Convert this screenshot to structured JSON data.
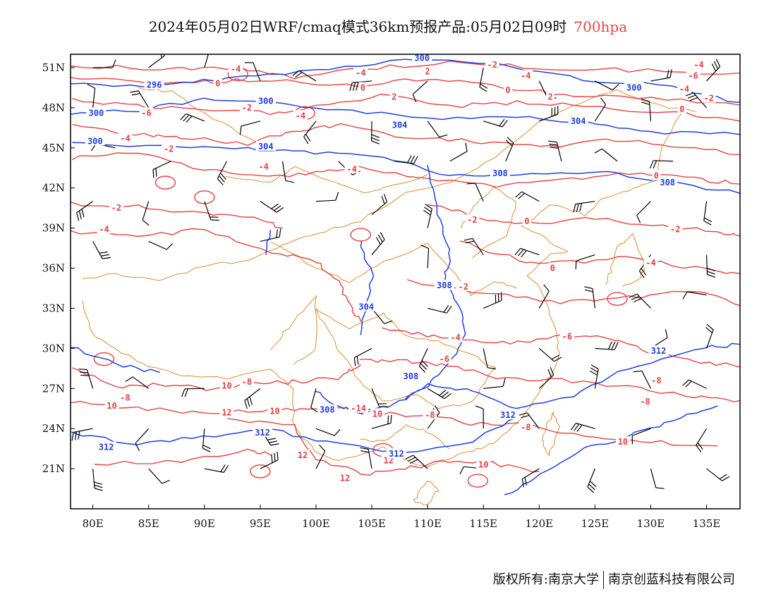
{
  "title": {
    "main": "2024年05月02日WRF/cmaq模式36km预报产品:05月02日09时",
    "level": "700hpa"
  },
  "map": {
    "lon_range": [
      78,
      138
    ],
    "lat_range": [
      18,
      52
    ],
    "x_ticks": [
      "80E",
      "85E",
      "90E",
      "95E",
      "100E",
      "105E",
      "110E",
      "115E",
      "120E",
      "125E",
      "130E",
      "135E"
    ],
    "x_tick_values": [
      80,
      85,
      90,
      95,
      100,
      105,
      110,
      115,
      120,
      125,
      130,
      135
    ],
    "y_ticks": [
      "51N",
      "48N",
      "45N",
      "42N",
      "39N",
      "36N",
      "33N",
      "30N",
      "27N",
      "24N",
      "21N"
    ],
    "y_tick_values": [
      51,
      48,
      45,
      42,
      39,
      36,
      33,
      30,
      27,
      24,
      21
    ],
    "colors": {
      "geopotential": "#2040e0",
      "temperature": "#e84040",
      "boundary": "#e08a30",
      "wind": "#000000"
    },
    "geopotential_labels": [
      {
        "text": "300",
        "lon": 95.5,
        "lat": 48.5
      },
      {
        "text": "300",
        "lon": 128.5,
        "lat": 49.5
      },
      {
        "text": "300",
        "lon": 109.5,
        "lat": 51.7
      },
      {
        "text": "296",
        "lon": 85.5,
        "lat": 49.7
      },
      {
        "text": "300",
        "lon": 80.3,
        "lat": 47.6
      },
      {
        "text": "304",
        "lon": 95.5,
        "lat": 45.1
      },
      {
        "text": "304",
        "lon": 107.5,
        "lat": 46.7
      },
      {
        "text": "304",
        "lon": 123.5,
        "lat": 47.0
      },
      {
        "text": "308",
        "lon": 116.5,
        "lat": 43.1
      },
      {
        "text": "308",
        "lon": 131.5,
        "lat": 42.4
      },
      {
        "text": "308",
        "lon": 111.5,
        "lat": 34.7
      },
      {
        "text": "304",
        "lon": 104.5,
        "lat": 33.1
      },
      {
        "text": "308",
        "lon": 108.5,
        "lat": 27.9
      },
      {
        "text": "308",
        "lon": 101.0,
        "lat": 25.4
      },
      {
        "text": "312",
        "lon": 130.7,
        "lat": 29.8
      },
      {
        "text": "312",
        "lon": 117.2,
        "lat": 25.0
      },
      {
        "text": "312",
        "lon": 95.2,
        "lat": 23.7
      },
      {
        "text": "312",
        "lon": 107.2,
        "lat": 22.1
      },
      {
        "text": "312",
        "lon": 81.2,
        "lat": 22.6
      },
      {
        "text": "300",
        "lon": 80.2,
        "lat": 45.5
      }
    ],
    "temperature_labels": [
      {
        "text": "-4",
        "lon": 92.8,
        "lat": 50.9
      },
      {
        "text": "0",
        "lon": 91.2,
        "lat": 49.8
      },
      {
        "text": "-2",
        "lon": 93.8,
        "lat": 48.0
      },
      {
        "text": "-6",
        "lon": 84.8,
        "lat": 47.6
      },
      {
        "text": "-4",
        "lon": 82.9,
        "lat": 45.7
      },
      {
        "text": "-2",
        "lon": 86.8,
        "lat": 44.9
      },
      {
        "text": "-4",
        "lon": 95.3,
        "lat": 43.6
      },
      {
        "text": "-4",
        "lon": 98.6,
        "lat": 47.4
      },
      {
        "text": "-4",
        "lon": 104.0,
        "lat": 50.6
      },
      {
        "text": "0",
        "lon": 104.2,
        "lat": 49.5
      },
      {
        "text": "2",
        "lon": 110.0,
        "lat": 50.7
      },
      {
        "text": "2",
        "lon": 107.0,
        "lat": 48.8
      },
      {
        "text": "-4",
        "lon": 103.2,
        "lat": 43.4
      },
      {
        "text": "-2",
        "lon": 82.1,
        "lat": 40.5
      },
      {
        "text": "-4",
        "lon": 81.0,
        "lat": 38.9
      },
      {
        "text": "-2",
        "lon": 114.0,
        "lat": 39.6
      },
      {
        "text": "0",
        "lon": 118.9,
        "lat": 39.5
      },
      {
        "text": "0",
        "lon": 130.5,
        "lat": 42.9
      },
      {
        "text": "0",
        "lon": 121.2,
        "lat": 36.0
      },
      {
        "text": "-2",
        "lon": 115.8,
        "lat": 51.2
      },
      {
        "text": "0",
        "lon": 117.2,
        "lat": 49.3
      },
      {
        "text": "2",
        "lon": 121.0,
        "lat": 48.8
      },
      {
        "text": "-4",
        "lon": 118.8,
        "lat": 50.4
      },
      {
        "text": "-4",
        "lon": 134.3,
        "lat": 51.2
      },
      {
        "text": "-6",
        "lon": 133.8,
        "lat": 50.4
      },
      {
        "text": "-4",
        "lon": 133.0,
        "lat": 49.4
      },
      {
        "text": "-2",
        "lon": 135.2,
        "lat": 48.7
      },
      {
        "text": "0",
        "lon": 132.8,
        "lat": 47.9
      },
      {
        "text": "-2",
        "lon": 132.2,
        "lat": 38.9
      },
      {
        "text": "-4",
        "lon": 130.0,
        "lat": 36.4
      },
      {
        "text": "-2",
        "lon": 113.2,
        "lat": 34.6
      },
      {
        "text": "-4",
        "lon": 112.5,
        "lat": 30.8
      },
      {
        "text": "-6",
        "lon": 111.5,
        "lat": 29.2
      },
      {
        "text": "-6",
        "lon": 122.5,
        "lat": 30.9
      },
      {
        "text": "-8",
        "lon": 130.5,
        "lat": 27.6
      },
      {
        "text": "-8",
        "lon": 129.5,
        "lat": 26.0
      },
      {
        "text": "-8",
        "lon": 118.8,
        "lat": 24.1
      },
      {
        "text": "10",
        "lon": 127.5,
        "lat": 23.0
      },
      {
        "text": "10",
        "lon": 115.0,
        "lat": 21.3
      },
      {
        "text": "12",
        "lon": 102.6,
        "lat": 20.3
      },
      {
        "text": "12",
        "lon": 106.5,
        "lat": 21.6
      },
      {
        "text": "12",
        "lon": 98.8,
        "lat": 22.0
      },
      {
        "text": "12",
        "lon": 92.0,
        "lat": 25.2
      },
      {
        "text": "10",
        "lon": 96.3,
        "lat": 25.3
      },
      {
        "text": "-14",
        "lon": 103.8,
        "lat": 25.5
      },
      {
        "text": "10",
        "lon": 105.5,
        "lat": 25.1
      },
      {
        "text": "-8",
        "lon": 110.2,
        "lat": 25.0
      },
      {
        "text": "10",
        "lon": 81.7,
        "lat": 25.7
      },
      {
        "text": "-8",
        "lon": 82.9,
        "lat": 26.3
      },
      {
        "text": "10",
        "lon": 92.0,
        "lat": 27.2
      },
      {
        "text": "-8",
        "lon": 93.8,
        "lat": 27.5
      }
    ],
    "wind_barbs": [
      {
        "lon": 80,
        "lat": 51
      },
      {
        "lon": 85,
        "lat": 51
      },
      {
        "lon": 90,
        "lat": 51
      },
      {
        "lon": 95,
        "lat": 50
      },
      {
        "lon": 100,
        "lat": 50
      },
      {
        "lon": 105,
        "lat": 50
      },
      {
        "lon": 110,
        "lat": 50
      },
      {
        "lon": 115,
        "lat": 51
      },
      {
        "lon": 120,
        "lat": 50
      },
      {
        "lon": 125,
        "lat": 50
      },
      {
        "lon": 130,
        "lat": 50
      },
      {
        "lon": 135,
        "lat": 50
      },
      {
        "lon": 80,
        "lat": 48
      },
      {
        "lon": 85,
        "lat": 48
      },
      {
        "lon": 90,
        "lat": 47
      },
      {
        "lon": 95,
        "lat": 47
      },
      {
        "lon": 100,
        "lat": 47
      },
      {
        "lon": 105,
        "lat": 47
      },
      {
        "lon": 110,
        "lat": 47
      },
      {
        "lon": 115,
        "lat": 47
      },
      {
        "lon": 120,
        "lat": 47
      },
      {
        "lon": 125,
        "lat": 47
      },
      {
        "lon": 130,
        "lat": 47
      },
      {
        "lon": 135,
        "lat": 48
      },
      {
        "lon": 82,
        "lat": 45
      },
      {
        "lon": 87,
        "lat": 44
      },
      {
        "lon": 92,
        "lat": 44
      },
      {
        "lon": 97,
        "lat": 44
      },
      {
        "lon": 102,
        "lat": 44
      },
      {
        "lon": 107,
        "lat": 44
      },
      {
        "lon": 112,
        "lat": 44
      },
      {
        "lon": 117,
        "lat": 44
      },
      {
        "lon": 122,
        "lat": 44
      },
      {
        "lon": 127,
        "lat": 44
      },
      {
        "lon": 132,
        "lat": 44
      },
      {
        "lon": 80,
        "lat": 41
      },
      {
        "lon": 85,
        "lat": 41
      },
      {
        "lon": 90,
        "lat": 41
      },
      {
        "lon": 95,
        "lat": 41
      },
      {
        "lon": 100,
        "lat": 41
      },
      {
        "lon": 105,
        "lat": 40
      },
      {
        "lon": 110,
        "lat": 39
      },
      {
        "lon": 115,
        "lat": 41
      },
      {
        "lon": 120,
        "lat": 41
      },
      {
        "lon": 125,
        "lat": 41
      },
      {
        "lon": 130,
        "lat": 41
      },
      {
        "lon": 135,
        "lat": 41
      },
      {
        "lon": 80,
        "lat": 38
      },
      {
        "lon": 85,
        "lat": 38
      },
      {
        "lon": 95,
        "lat": 38
      },
      {
        "lon": 105,
        "lat": 37
      },
      {
        "lon": 110,
        "lat": 36
      },
      {
        "lon": 115,
        "lat": 37
      },
      {
        "lon": 120,
        "lat": 37
      },
      {
        "lon": 125,
        "lat": 37
      },
      {
        "lon": 130,
        "lat": 37
      },
      {
        "lon": 135,
        "lat": 37
      },
      {
        "lon": 105,
        "lat": 33
      },
      {
        "lon": 110,
        "lat": 33
      },
      {
        "lon": 115,
        "lat": 33
      },
      {
        "lon": 120,
        "lat": 33
      },
      {
        "lon": 125,
        "lat": 33
      },
      {
        "lon": 130,
        "lat": 33
      },
      {
        "lon": 135,
        "lat": 34
      },
      {
        "lon": 105,
        "lat": 30
      },
      {
        "lon": 110,
        "lat": 30
      },
      {
        "lon": 115,
        "lat": 30
      },
      {
        "lon": 120,
        "lat": 30
      },
      {
        "lon": 125,
        "lat": 30
      },
      {
        "lon": 130,
        "lat": 30
      },
      {
        "lon": 135,
        "lat": 30
      },
      {
        "lon": 80,
        "lat": 27
      },
      {
        "lon": 85,
        "lat": 27
      },
      {
        "lon": 90,
        "lat": 27
      },
      {
        "lon": 95,
        "lat": 27
      },
      {
        "lon": 100,
        "lat": 27
      },
      {
        "lon": 105,
        "lat": 27
      },
      {
        "lon": 110,
        "lat": 27
      },
      {
        "lon": 115,
        "lat": 27
      },
      {
        "lon": 120,
        "lat": 27
      },
      {
        "lon": 125,
        "lat": 27
      },
      {
        "lon": 130,
        "lat": 27
      },
      {
        "lon": 135,
        "lat": 27
      },
      {
        "lon": 80,
        "lat": 24
      },
      {
        "lon": 85,
        "lat": 24
      },
      {
        "lon": 90,
        "lat": 24
      },
      {
        "lon": 95,
        "lat": 24
      },
      {
        "lon": 100,
        "lat": 24
      },
      {
        "lon": 105,
        "lat": 24
      },
      {
        "lon": 110,
        "lat": 24
      },
      {
        "lon": 115,
        "lat": 24
      },
      {
        "lon": 120,
        "lat": 24
      },
      {
        "lon": 125,
        "lat": 24
      },
      {
        "lon": 130,
        "lat": 24
      },
      {
        "lon": 135,
        "lat": 24
      },
      {
        "lon": 80,
        "lat": 21
      },
      {
        "lon": 85,
        "lat": 21
      },
      {
        "lon": 90,
        "lat": 21
      },
      {
        "lon": 95,
        "lat": 21
      },
      {
        "lon": 100,
        "lat": 21
      },
      {
        "lon": 105,
        "lat": 21
      },
      {
        "lon": 110,
        "lat": 21
      },
      {
        "lon": 115,
        "lat": 21
      },
      {
        "lon": 120,
        "lat": 21
      },
      {
        "lon": 125,
        "lat": 21
      },
      {
        "lon": 130,
        "lat": 21
      },
      {
        "lon": 135,
        "lat": 21
      }
    ]
  },
  "footer": {
    "left": "版权所有:南京大学",
    "right": "南京创蓝科技有限公司"
  }
}
